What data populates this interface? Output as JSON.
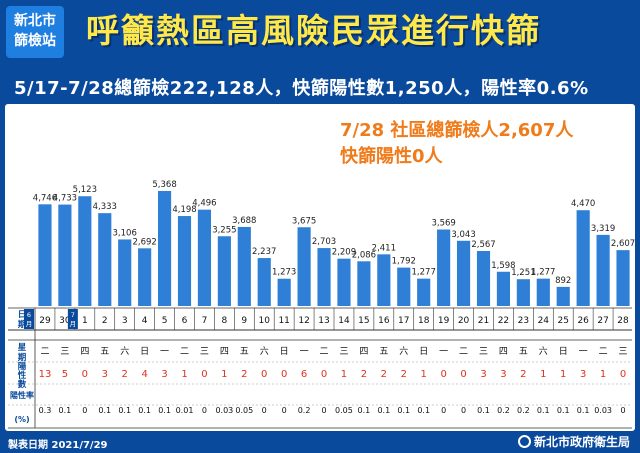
{
  "badge": {
    "line1": "新北市",
    "line2": "篩檢站"
  },
  "title": "呼籲熱區高風險民眾進行快篩",
  "subtitle": "5/17-7/28總篩檢222,128人，快篩陽性數1,250人，陽性率0.6%",
  "callout": {
    "line1": "7/28 社區總篩檢人2,607人",
    "line2": "快篩陽性0人"
  },
  "row_labels": {
    "date": "日期",
    "weekday": "星期",
    "positive": "陽性數",
    "rate": "陽性率(%)"
  },
  "month_markers": {
    "june": "6月",
    "july": "7月"
  },
  "footer": {
    "made_date": "製表日期 2021/7/29",
    "agency": "新北市政府衛生局"
  },
  "colors": {
    "bar": "#2f7fd6",
    "positive_red": "#e0301e",
    "title_yellow": "#ffe84a",
    "callout_orange": "#f07b1a",
    "background": "#0a4a9c"
  },
  "chart_data": {
    "type": "bar",
    "categories": [
      "29",
      "30",
      "1",
      "2",
      "3",
      "4",
      "5",
      "6",
      "7",
      "8",
      "9",
      "10",
      "11",
      "12",
      "13",
      "14",
      "15",
      "16",
      "17",
      "18",
      "19",
      "20",
      "21",
      "22",
      "23",
      "24",
      "25",
      "26",
      "27",
      "28"
    ],
    "values": [
      4746,
      4733,
      5123,
      4333,
      3106,
      2692,
      5368,
      4198,
      4496,
      3255,
      3688,
      2237,
      1273,
      3675,
      2703,
      2209,
      2086,
      2411,
      1792,
      1277,
      3569,
      3043,
      2567,
      1598,
      1251,
      1277,
      892,
      4470,
      3319,
      2607
    ],
    "value_labels": [
      "4,746",
      "4,733",
      "5,123",
      "4,333",
      "3,106",
      "2,692",
      "5,368",
      "4,198",
      "4,496",
      "3,255",
      "3,688",
      "2,237",
      "1,273",
      "3,675",
      "2,703",
      "2,209",
      "2,086",
      "2,411",
      "1,792",
      "1,277",
      "3,569",
      "3,043",
      "2,567",
      "1,598",
      "1,251",
      "1,277",
      "892",
      "4,470",
      "3,319",
      "2,607"
    ],
    "weekdays": [
      "二",
      "三",
      "四",
      "五",
      "六",
      "日",
      "一",
      "二",
      "三",
      "四",
      "五",
      "六",
      "日",
      "一",
      "二",
      "三",
      "四",
      "五",
      "六",
      "日",
      "一",
      "二",
      "三",
      "四",
      "五",
      "六",
      "日",
      "一",
      "二",
      "三"
    ],
    "positives": [
      "13",
      "5",
      "0",
      "3",
      "2",
      "4",
      "3",
      "1",
      "0",
      "1",
      "2",
      "0",
      "0",
      "6",
      "0",
      "1",
      "2",
      "2",
      "2",
      "1",
      "0",
      "0",
      "3",
      "3",
      "2",
      "1",
      "1",
      "3",
      "1",
      "0"
    ],
    "rates": [
      "0.3",
      "0.1",
      "0",
      "0.1",
      "0.1",
      "0.1",
      "0.1",
      "0.01",
      "0",
      "0.03",
      "0.05",
      "0",
      "0",
      "0.2",
      "0",
      "0.05",
      "0.1",
      "0.1",
      "0.1",
      "0.1",
      "0",
      "0",
      "0.1",
      "0.2",
      "0.2",
      "0.1",
      "0.1",
      "0.1",
      "0.03",
      "0"
    ],
    "ylim": [
      0,
      5600
    ]
  }
}
